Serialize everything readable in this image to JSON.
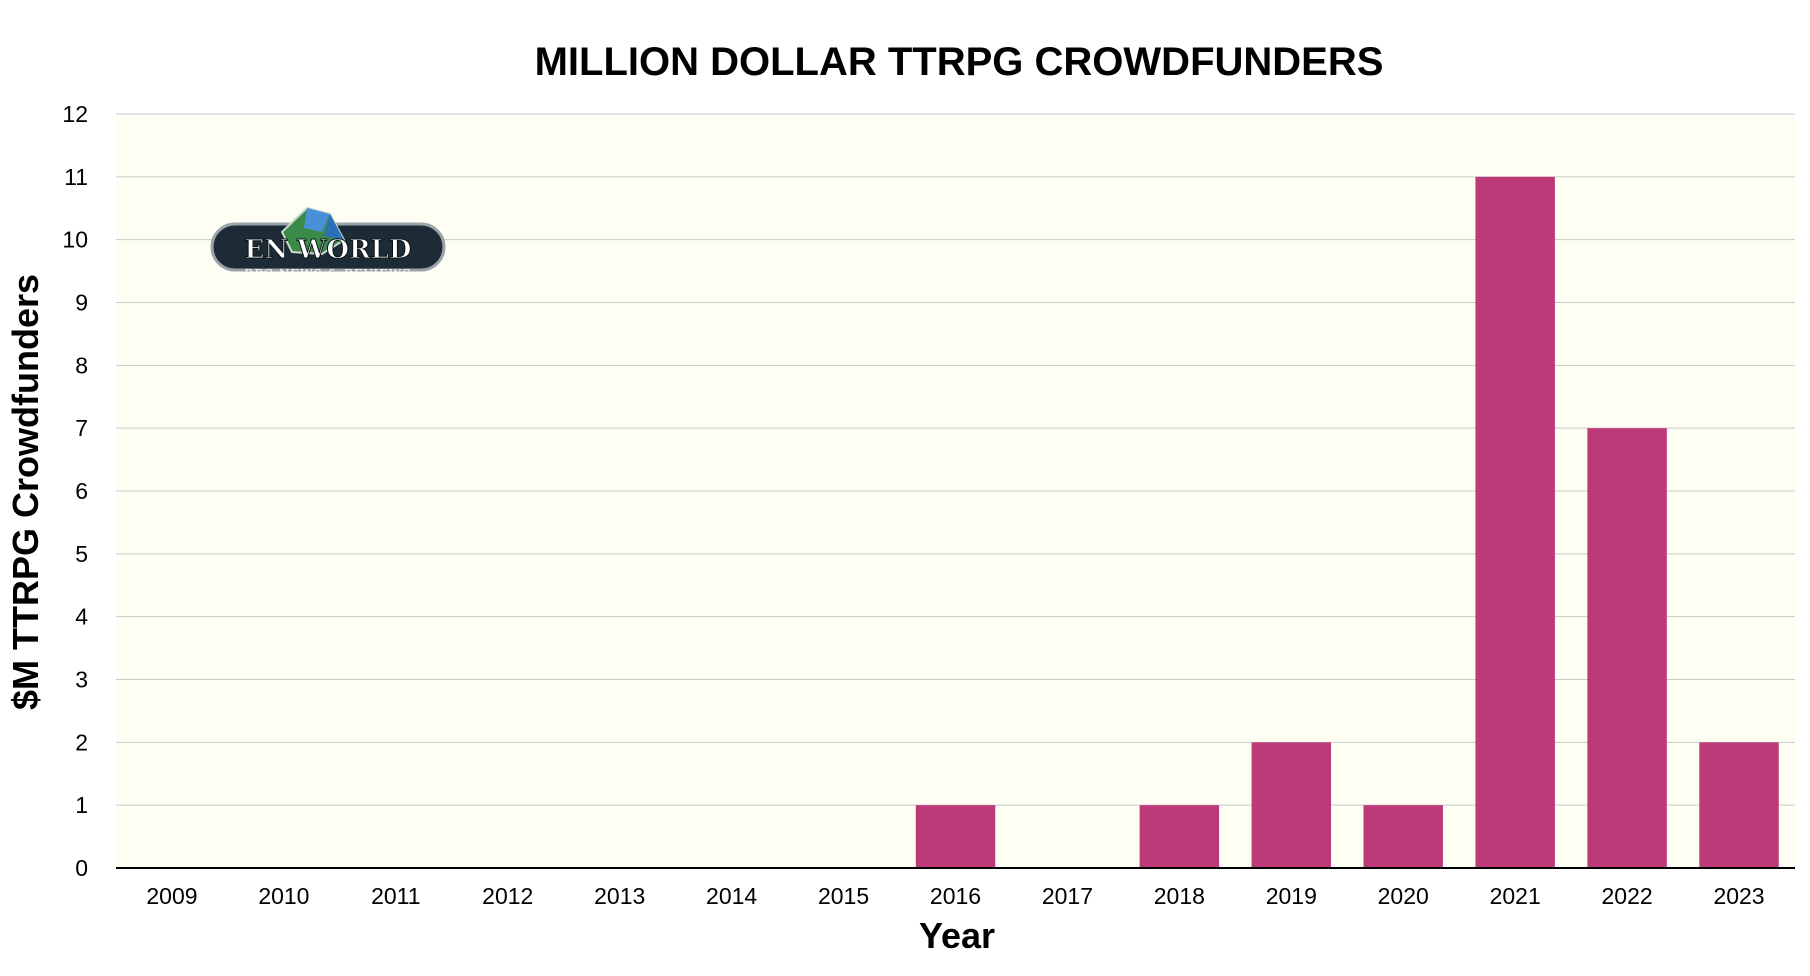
{
  "chart_data": {
    "type": "bar",
    "title": "MILLION DOLLAR TTRPG CROWDFUNDERS",
    "xlabel": "Year",
    "ylabel": "$M TTRPG Crowdfunders",
    "categories": [
      "2009",
      "2010",
      "2011",
      "2012",
      "2013",
      "2014",
      "2015",
      "2016",
      "2017",
      "2018",
      "2019",
      "2020",
      "2021",
      "2022",
      "2023"
    ],
    "values": [
      0,
      0,
      0,
      0,
      0,
      0,
      0,
      1,
      0,
      1,
      2,
      1,
      11,
      7,
      2
    ],
    "ylim": [
      0,
      12
    ],
    "yticks": [
      0,
      1,
      2,
      3,
      4,
      5,
      6,
      7,
      8,
      9,
      10,
      11,
      12
    ],
    "grid": true,
    "legend": "none",
    "colors": {
      "bar": "#bc3a78",
      "plot_background": "#fefef4",
      "grid": "#c9c9c9"
    }
  },
  "logo": {
    "brand": "EN WORLD",
    "tagline": "RPG NEWS & REVIEWS"
  }
}
